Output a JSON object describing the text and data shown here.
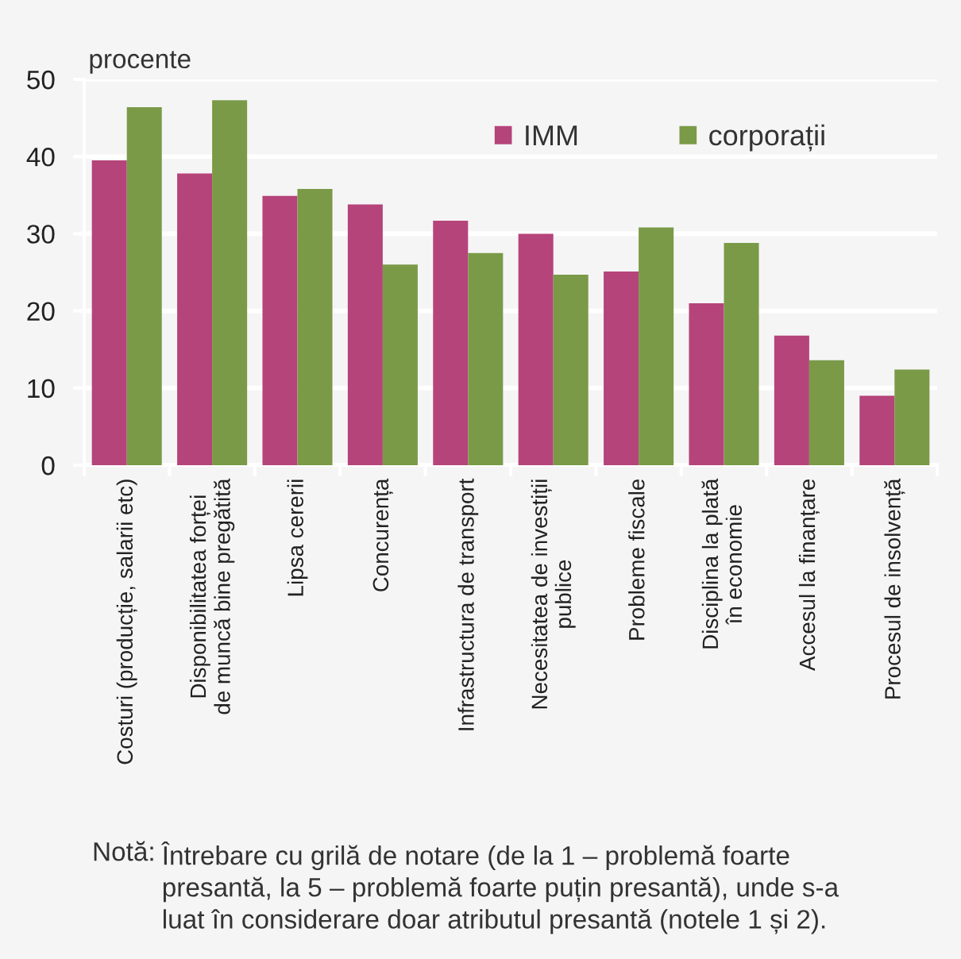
{
  "chart_data": {
    "type": "bar",
    "ylabel": "procente",
    "categories": [
      "Costuri (producție, salarii etc)",
      "Disponibilitatea forței\nde muncă bine pregătită",
      "Lipsa cererii",
      "Concurența",
      "Infrastructura de transport",
      "Necesitatea de investiții\npublice",
      "Probleme fiscale",
      "Disciplina la plată\nîn economie",
      "Accesul la finanțare",
      "Procesul de insolvență"
    ],
    "series": [
      {
        "name": "IMM",
        "color": "#b5447a",
        "values": [
          39.5,
          37.8,
          34.9,
          33.8,
          31.7,
          30.0,
          25.1,
          21.0,
          16.8,
          9.0
        ]
      },
      {
        "name": "corporații",
        "color": "#7a9a48",
        "values": [
          46.4,
          47.3,
          35.8,
          26.0,
          27.5,
          24.7,
          30.8,
          28.8,
          13.6,
          12.4
        ]
      }
    ],
    "ylim": [
      0,
      50
    ],
    "yticks": [
      0,
      10,
      20,
      30,
      40,
      50
    ],
    "grid": "y",
    "legend": "top right",
    "annotations": [
      "Notă:",
      "Întrebare cu grilă de notare (de la 1 – problemă foarte\npresantă, la 5 – problemă foarte puțin presantă), unde s-a\nluat în considerare doar atributul presantă (notele 1 și 2)."
    ]
  }
}
